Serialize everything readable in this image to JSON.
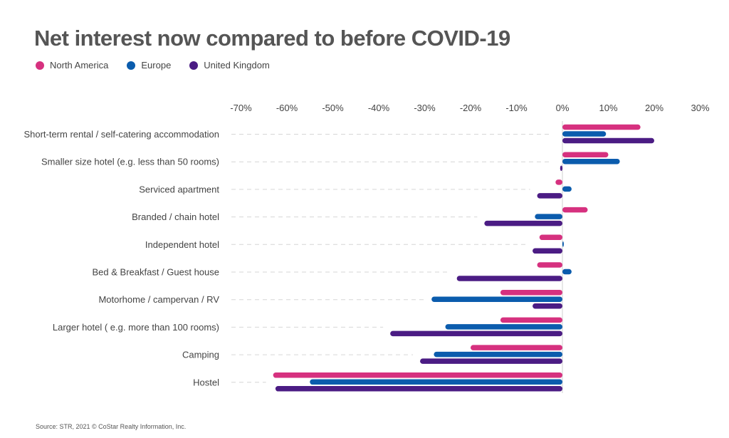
{
  "title": "Net interest now compared to before COVID-19",
  "source": "Source: STR, 2021 © CoStar Realty Information, Inc.",
  "chart_data": {
    "type": "bar",
    "orientation": "horizontal",
    "title": "Net interest now compared to before COVID-19",
    "xlim": [
      -70,
      30
    ],
    "xticks": [
      -70,
      -60,
      -50,
      -40,
      -30,
      -20,
      -10,
      0,
      10,
      20,
      30
    ],
    "tick_labels": [
      "-70%",
      "-60%",
      "-50%",
      "-40%",
      "-30%",
      "-20%",
      "-10%",
      "0%",
      "10%",
      "20%",
      "30%"
    ],
    "legend_position": "top-left",
    "grid": false,
    "categories": [
      "Short-term rental / self-catering accommodation",
      "Smaller size hotel (e.g. less than 50 rooms)",
      "Serviced apartment",
      "Branded / chain hotel",
      "Independent hotel",
      "Bed & Breakfast / Guest house",
      "Motorhome / campervan / RV",
      "Larger hotel ( e.g. more than 100 rooms)",
      "Camping",
      "Hostel"
    ],
    "series": [
      {
        "name": "North America",
        "color": "#d6317f",
        "values": [
          17,
          10,
          -1.5,
          5.5,
          -5,
          -5.5,
          -13.5,
          -13.5,
          -20,
          -63
        ]
      },
      {
        "name": "Europe",
        "color": "#0b5cad",
        "values": [
          9.5,
          12.5,
          2,
          -6,
          0.3,
          2,
          -28.5,
          -25.5,
          -28,
          -55
        ]
      },
      {
        "name": "United Kingdom",
        "color": "#4b1c84",
        "values": [
          20,
          -0.5,
          -5.5,
          -17,
          -6.5,
          -23,
          -6.5,
          -37.5,
          -31,
          -62.5
        ]
      }
    ]
  }
}
